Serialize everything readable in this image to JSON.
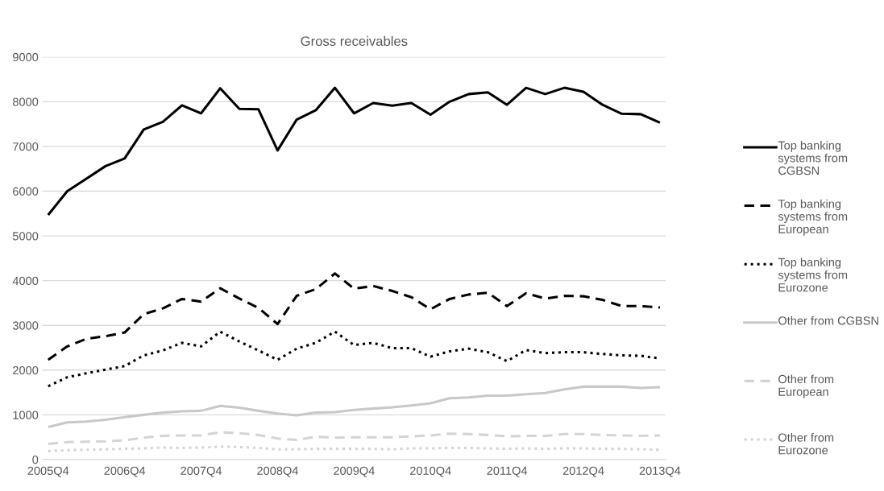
{
  "chart_data": {
    "type": "line",
    "title": "Gross receivables",
    "categories": [
      "2005Q4",
      null,
      null,
      null,
      "2006Q4",
      null,
      null,
      null,
      "2007Q4",
      null,
      null,
      null,
      "2008Q4",
      null,
      null,
      null,
      "2009Q4",
      null,
      null,
      null,
      "2010Q4",
      null,
      null,
      null,
      "2011Q4",
      null,
      null,
      null,
      "2012Q4",
      null,
      null,
      null,
      "2013Q4"
    ],
    "ylim": [
      0,
      9000
    ],
    "yticks": [
      0,
      1000,
      2000,
      3000,
      4000,
      5000,
      6000,
      7000,
      8000,
      9000
    ],
    "grid": "y",
    "legend": "right",
    "marker": "none",
    "series": [
      {
        "name": "Top banking systems from CGBSN",
        "color": "#000000",
        "line_style": "solid",
        "values": [
          5470,
          6000,
          6280,
          6560,
          6730,
          7380,
          7550,
          7920,
          7740,
          8300,
          7840,
          7830,
          6910,
          7600,
          7810,
          8310,
          7740,
          7970,
          7910,
          7970,
          7710,
          8000,
          8170,
          8210,
          7930,
          8310,
          8170,
          8310,
          8220,
          7930,
          7730,
          7720,
          7530
        ]
      },
      {
        "name": "Top banking systems from European",
        "color": "#000000",
        "line_style": "dashed",
        "values": [
          2230,
          2530,
          2700,
          2760,
          2840,
          3250,
          3380,
          3590,
          3530,
          3830,
          3600,
          3390,
          3030,
          3660,
          3810,
          4160,
          3820,
          3880,
          3770,
          3630,
          3360,
          3590,
          3690,
          3730,
          3430,
          3720,
          3600,
          3660,
          3650,
          3570,
          3430,
          3430,
          3400
        ]
      },
      {
        "name": "Top banking systems from Eurozone",
        "color": "#000000",
        "line_style": "dotted",
        "values": [
          1640,
          1840,
          1930,
          2010,
          2090,
          2330,
          2440,
          2610,
          2530,
          2860,
          2640,
          2440,
          2230,
          2480,
          2610,
          2860,
          2560,
          2610,
          2490,
          2490,
          2300,
          2420,
          2480,
          2400,
          2200,
          2450,
          2380,
          2400,
          2400,
          2360,
          2330,
          2320,
          2260
        ]
      },
      {
        "name": "Other from CGBSN",
        "color": "#c8c8c8",
        "line_style": "solid",
        "values": [
          730,
          830,
          850,
          890,
          950,
          1000,
          1050,
          1080,
          1090,
          1200,
          1160,
          1090,
          1030,
          990,
          1050,
          1060,
          1110,
          1140,
          1170,
          1210,
          1260,
          1370,
          1390,
          1430,
          1430,
          1460,
          1490,
          1570,
          1630,
          1630,
          1630,
          1600,
          1620
        ]
      },
      {
        "name": "Other from European",
        "color": "#d4d4d4",
        "line_style": "dashed",
        "values": [
          350,
          390,
          400,
          410,
          430,
          490,
          530,
          540,
          540,
          610,
          590,
          550,
          470,
          440,
          510,
          490,
          500,
          500,
          500,
          520,
          540,
          580,
          570,
          550,
          520,
          530,
          530,
          570,
          570,
          550,
          540,
          530,
          540
        ]
      },
      {
        "name": "Other from Eurozone",
        "color": "#d4d4d4",
        "line_style": "dotted",
        "values": [
          190,
          210,
          220,
          230,
          240,
          250,
          270,
          260,
          270,
          290,
          280,
          260,
          230,
          230,
          240,
          240,
          240,
          240,
          230,
          250,
          250,
          260,
          260,
          250,
          240,
          250,
          240,
          250,
          250,
          240,
          240,
          230,
          220
        ]
      }
    ]
  }
}
